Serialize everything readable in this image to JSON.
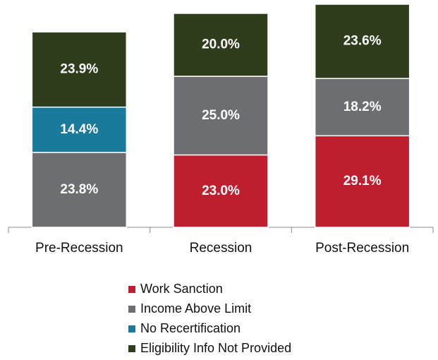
{
  "chart_data": {
    "type": "stacked-bar",
    "categories": [
      "Pre-Recession",
      "Recession",
      "Post-Recession"
    ],
    "series": [
      {
        "name": "Work Sanction",
        "color": "#be1e2d",
        "values": [
          null,
          23.0,
          29.1
        ],
        "value_labels": [
          null,
          "23.0%",
          "29.1%"
        ]
      },
      {
        "name": "Income Above Limit",
        "color": "#6d6e71",
        "values": [
          23.8,
          25.0,
          18.2
        ],
        "value_labels": [
          "23.8%",
          "25.0%",
          "18.2%"
        ]
      },
      {
        "name": "No Recertification",
        "color": "#1a7a9c",
        "values": [
          14.4,
          null,
          null
        ],
        "value_labels": [
          "14.4%",
          null,
          null
        ]
      },
      {
        "name": "Eligibility Info Not Provided",
        "color": "#2f3d1c",
        "values": [
          23.9,
          20.0,
          23.6
        ],
        "value_labels": [
          "23.9%",
          "20.0%",
          "23.6%"
        ]
      }
    ]
  }
}
